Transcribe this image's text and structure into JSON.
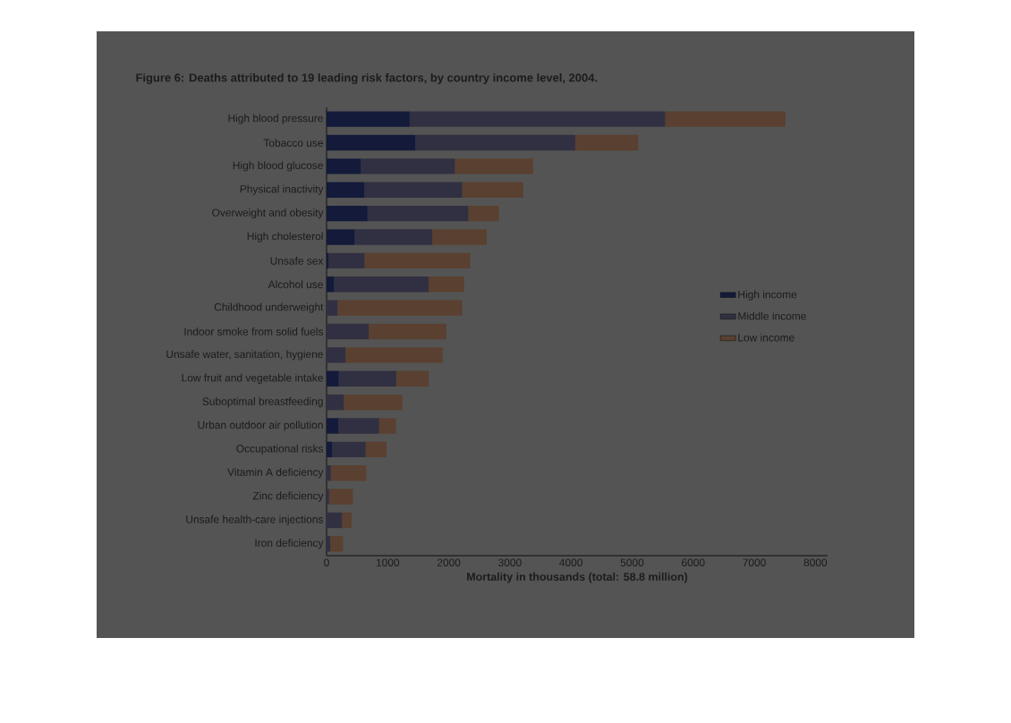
{
  "chart_data": {
    "type": "bar",
    "orientation": "horizontal",
    "stacked": true,
    "title": "Figure 6: Deaths attributed to 19 leading risk factors, by country income level, 2004.",
    "xlabel": "Mortality in thousands (total: 58.8 million)",
    "categories": [
      "High blood pressure",
      "Tobacco use",
      "High blood glucose",
      "Physical inactivity",
      "Overweight and obesity",
      "High cholesterol",
      "Unsafe sex",
      "Alcohol use",
      "Childhood underweight",
      "Indoor smoke from solid fuels",
      "Unsafe water, sanitation, hygiene",
      "Low fruit and vegetable intake",
      "Suboptimal breastfeeding",
      "Urban outdoor air pollution",
      "Occupational risks",
      "Vitamin A deficiency",
      "Zinc deficiency",
      "Unsafe health-care injections",
      "Iron deficiency"
    ],
    "series": [
      {
        "name": "High income",
        "color": "#131a3a",
        "values": [
          1360,
          1450,
          560,
          620,
          670,
          460,
          30,
          120,
          0,
          0,
          0,
          200,
          0,
          190,
          90,
          0,
          0,
          0,
          0
        ]
      },
      {
        "name": "Middle income",
        "color": "#313042",
        "values": [
          4180,
          2620,
          1540,
          1600,
          1650,
          1270,
          590,
          1550,
          180,
          690,
          310,
          940,
          280,
          670,
          550,
          70,
          40,
          250,
          60
        ]
      },
      {
        "name": "Low income",
        "color": "#5a4030",
        "values": [
          1970,
          1030,
          1280,
          1000,
          500,
          890,
          1730,
          580,
          2040,
          1270,
          1590,
          530,
          960,
          280,
          340,
          580,
          390,
          160,
          210
        ]
      }
    ],
    "xlim": [
      0,
      8200
    ],
    "xticks": [
      0,
      1000,
      2000,
      3000,
      4000,
      5000,
      6000,
      7000,
      8000
    ],
    "legend": "right"
  }
}
